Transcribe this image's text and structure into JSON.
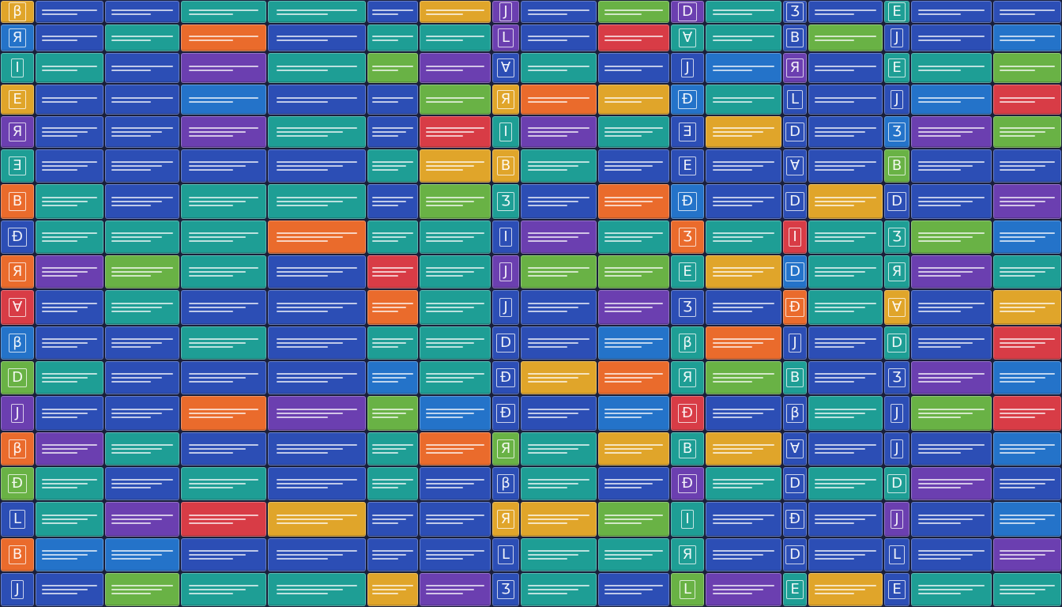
{
  "palette": [
    "#2c4eb5",
    "#1e9e95",
    "#6b3fb0",
    "#e0a52a",
    "#ea6b2c",
    "#d83c46",
    "#69b245",
    "#2473c9"
  ],
  "glyphs": [
    "D",
    "B",
    "Ɐ",
    "L",
    "J",
    "E",
    "β",
    "Ð",
    "Ʒ",
    "Ǝ",
    "Ι",
    "Я"
  ],
  "grid": {
    "columns": [
      0,
      44,
      132,
      228,
      338,
      464,
      530,
      622,
      658,
      756,
      848,
      892,
      990,
      1022,
      1118,
      1152,
      1256,
      1344
    ],
    "rows": [
      0,
      30,
      66,
      106,
      146,
      188,
      232,
      278,
      322,
      366,
      412,
      456,
      500,
      546,
      590,
      634,
      680,
      724,
      768
    ]
  }
}
